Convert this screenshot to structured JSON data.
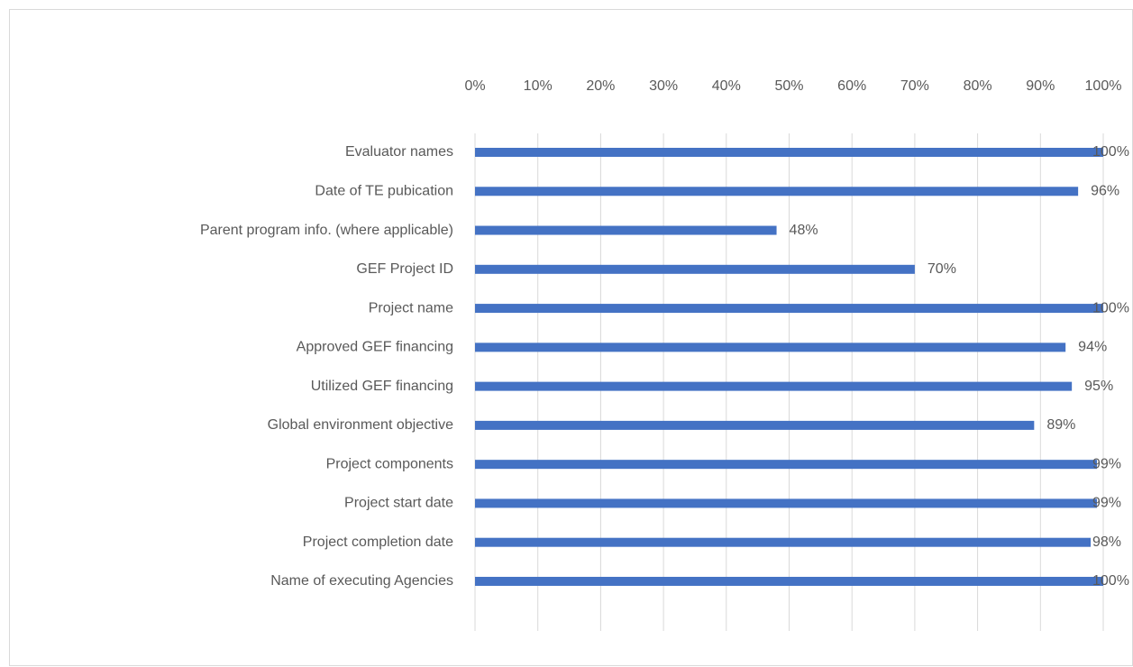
{
  "chart_data": {
    "type": "bar",
    "orientation": "horizontal",
    "categories": [
      "Evaluator names",
      "Date of TE pubication",
      "Parent program info. (where applicable)",
      "GEF Project ID",
      "Project name",
      "Approved GEF financing",
      "Utilized GEF financing",
      "Global environment objective",
      "Project components",
      "Project start date",
      "Project completion date",
      "Name of executing Agencies"
    ],
    "values": [
      100,
      96,
      48,
      70,
      100,
      94,
      95,
      89,
      99,
      99,
      98,
      100
    ],
    "value_labels": [
      "100%",
      "96%",
      "48%",
      "70%",
      "100%",
      "94%",
      "95%",
      "89%",
      "99%",
      "99%",
      "98%",
      "100%"
    ],
    "color": "#4472c4",
    "xlim": [
      0,
      100
    ],
    "xticks": [
      {
        "value": 0,
        "label": "0%"
      },
      {
        "value": 10,
        "label": "10%"
      },
      {
        "value": 20,
        "label": "20%"
      },
      {
        "value": 30,
        "label": "30%"
      },
      {
        "value": 40,
        "label": "40%"
      },
      {
        "value": 50,
        "label": "50%"
      },
      {
        "value": 60,
        "label": "60%"
      },
      {
        "value": 70,
        "label": "70%"
      },
      {
        "value": 80,
        "label": "80%"
      },
      {
        "value": 90,
        "label": "90%"
      },
      {
        "value": 100,
        "label": "100%"
      }
    ],
    "grid": true
  }
}
